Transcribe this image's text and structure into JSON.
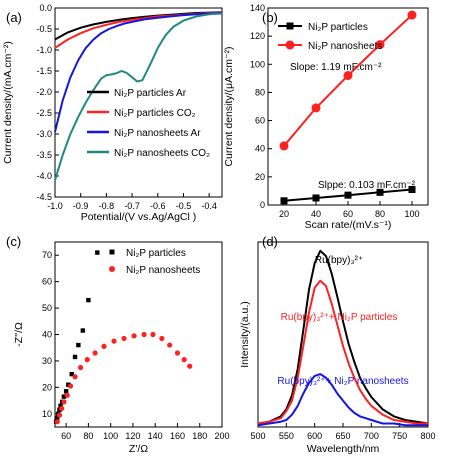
{
  "colors": {
    "black": "#000000",
    "red": "#ff2020",
    "blue": "#1515e0",
    "teal": "#1f8a80"
  },
  "chart_data": [
    {
      "panel_label": "(a)",
      "type": "line",
      "xlabel": "Potential/(V vs.Ag/AgCl )",
      "ylabel": "Current density/(mA.cm⁻²)",
      "xlim": [
        -1.0,
        -0.35
      ],
      "ylim": [
        -4.5,
        0
      ],
      "xticks": [
        "-1.0",
        "-0.9",
        "-0.8",
        "-0.7",
        "-0.6",
        "-0.5",
        "-0.4"
      ],
      "yticks": [
        "-4.5",
        "-4.0",
        "-3.5",
        "-3.0",
        "-2.5",
        "-2.0",
        "-1.5",
        "-1.0",
        "-0.5",
        "0.0"
      ],
      "legend_position": "lower-right",
      "series": [
        {
          "name": "Ni₂P particles Ar",
          "color": "#000000",
          "x": [
            -1.0,
            -0.95,
            -0.9,
            -0.85,
            -0.8,
            -0.75,
            -0.7,
            -0.65,
            -0.6,
            -0.55,
            -0.5,
            -0.45,
            -0.4,
            -0.35
          ],
          "y": [
            -0.75,
            -0.58,
            -0.47,
            -0.39,
            -0.33,
            -0.28,
            -0.24,
            -0.21,
            -0.18,
            -0.16,
            -0.14,
            -0.12,
            -0.11,
            -0.1
          ]
        },
        {
          "name": "Ni₂P particles CO₂",
          "color": "#ff2020",
          "x": [
            -1.0,
            -0.95,
            -0.9,
            -0.85,
            -0.8,
            -0.75,
            -0.7,
            -0.65,
            -0.6,
            -0.55,
            -0.5,
            -0.45,
            -0.4,
            -0.35
          ],
          "y": [
            -0.95,
            -0.75,
            -0.6,
            -0.48,
            -0.4,
            -0.33,
            -0.28,
            -0.24,
            -0.2,
            -0.18,
            -0.16,
            -0.14,
            -0.12,
            -0.11
          ]
        },
        {
          "name": "Ni₂P nanosheets Ar",
          "color": "#1515e0",
          "x": [
            -1.0,
            -0.97,
            -0.94,
            -0.91,
            -0.88,
            -0.85,
            -0.82,
            -0.79,
            -0.76,
            -0.73,
            -0.7,
            -0.65,
            -0.6,
            -0.55,
            -0.5,
            -0.45,
            -0.4,
            -0.35
          ],
          "y": [
            -2.95,
            -2.2,
            -1.65,
            -1.25,
            -0.95,
            -0.75,
            -0.6,
            -0.5,
            -0.43,
            -0.37,
            -0.33,
            -0.27,
            -0.23,
            -0.2,
            -0.17,
            -0.15,
            -0.13,
            -0.12
          ]
        },
        {
          "name": "Ni₂P nanosheets CO₂",
          "color": "#1f8a80",
          "x": [
            -1.0,
            -0.97,
            -0.94,
            -0.91,
            -0.88,
            -0.85,
            -0.82,
            -0.8,
            -0.78,
            -0.76,
            -0.74,
            -0.72,
            -0.7,
            -0.68,
            -0.66,
            -0.63,
            -0.6,
            -0.57,
            -0.54,
            -0.5,
            -0.45,
            -0.4,
            -0.35
          ],
          "y": [
            -4.1,
            -3.5,
            -3.0,
            -2.6,
            -2.25,
            -1.95,
            -1.68,
            -1.6,
            -1.58,
            -1.55,
            -1.5,
            -1.55,
            -1.65,
            -1.75,
            -1.72,
            -1.35,
            -0.95,
            -0.65,
            -0.45,
            -0.3,
            -0.2,
            -0.15,
            -0.13
          ]
        }
      ]
    },
    {
      "panel_label": "(b)",
      "type": "line",
      "xlabel": "Scan rate/(mV.s⁻¹)",
      "ylabel": "Current density/(μA.cm⁻²)",
      "xlim": [
        10,
        110
      ],
      "ylim": [
        0,
        140
      ],
      "xticks": [
        "20",
        "40",
        "60",
        "80",
        "100"
      ],
      "yticks": [
        "0",
        "20",
        "40",
        "60",
        "80",
        "100",
        "120",
        "140"
      ],
      "legend_position": "top-left",
      "annotations": [
        "Slope: 1.19 mF.cm⁻²",
        "Slppe: 0.103 mF.cm⁻²"
      ],
      "series": [
        {
          "name": "Ni₂P particles",
          "marker": "square",
          "color": "#000000",
          "x": [
            20,
            40,
            60,
            80,
            100
          ],
          "y": [
            3,
            5,
            7,
            9,
            11
          ]
        },
        {
          "name": "Ni₂P nanosheets",
          "marker": "circle",
          "color": "#ff2020",
          "x": [
            20,
            40,
            60,
            80,
            100
          ],
          "y": [
            42,
            69,
            92,
            114,
            135
          ]
        }
      ]
    },
    {
      "panel_label": "(c)",
      "type": "scatter",
      "xlabel": "Z'/Ω",
      "ylabel": "-Z''/Ω",
      "xlim": [
        50,
        200
      ],
      "ylim": [
        5,
        75
      ],
      "xticks": [
        "60",
        "80",
        "100",
        "120",
        "140",
        "160",
        "180",
        "200"
      ],
      "yticks": [
        "10",
        "20",
        "30",
        "40",
        "50",
        "60",
        "70"
      ],
      "legend_position": "top-right",
      "series": [
        {
          "name": "Ni₂P particles",
          "marker": "square",
          "color": "#000000",
          "x": [
            51,
            52,
            53,
            54,
            55,
            56.5,
            58,
            60,
            62,
            65,
            68,
            71,
            75,
            80,
            88
          ],
          "y": [
            7,
            8.5,
            10,
            11.5,
            13,
            14.5,
            16.5,
            18.5,
            21,
            25,
            31.5,
            36,
            41.5,
            53,
            71
          ]
        },
        {
          "name": "Ni₂P nanosheets",
          "marker": "circle",
          "color": "#ff2020",
          "x": [
            52,
            54,
            56,
            58,
            61,
            64,
            68,
            73,
            79,
            86,
            94,
            103,
            112,
            121,
            130,
            138,
            146,
            153,
            160,
            166,
            171
          ],
          "y": [
            7,
            9.5,
            12,
            14.5,
            17,
            20.5,
            24,
            27.5,
            30.5,
            33,
            35.5,
            37.5,
            38.5,
            39.5,
            40,
            40,
            38.5,
            36,
            33,
            30.5,
            28
          ]
        }
      ]
    },
    {
      "panel_label": "(d)",
      "type": "line",
      "xlabel": "Wavelength/nm",
      "ylabel": "Intensity/(a.u.)",
      "xlim": [
        500,
        800
      ],
      "ylim": [
        0,
        1.05
      ],
      "xticks": [
        "500",
        "550",
        "600",
        "650",
        "700",
        "750",
        "800"
      ],
      "yticks": [],
      "annotations": [
        "Ru(bpy)₃²⁺",
        "Ru(bpy)₃²⁺+ Ni₂P particles",
        "Ru(bpy)₃²⁺+ Ni₂P nanosheets"
      ],
      "series": [
        {
          "name": "Ru(bpy)₃²⁺",
          "color": "#000000",
          "x": [
            500,
            520,
            540,
            550,
            560,
            570,
            580,
            590,
            600,
            610,
            620,
            630,
            640,
            650,
            660,
            670,
            680,
            690,
            700,
            720,
            740,
            760,
            780,
            800
          ],
          "y": [
            0.02,
            0.03,
            0.06,
            0.1,
            0.18,
            0.33,
            0.55,
            0.78,
            0.93,
            1.0,
            0.97,
            0.87,
            0.74,
            0.6,
            0.47,
            0.37,
            0.28,
            0.22,
            0.17,
            0.1,
            0.06,
            0.04,
            0.03,
            0.02
          ]
        },
        {
          "name": "Ru(bpy)₃²⁺+ Ni₂P particles",
          "color": "#ff2020",
          "x": [
            500,
            520,
            540,
            550,
            560,
            570,
            580,
            590,
            600,
            610,
            620,
            630,
            640,
            650,
            660,
            670,
            680,
            690,
            700,
            720,
            740,
            760,
            780,
            800
          ],
          "y": [
            0.02,
            0.03,
            0.05,
            0.09,
            0.15,
            0.28,
            0.46,
            0.65,
            0.79,
            0.83,
            0.8,
            0.7,
            0.58,
            0.46,
            0.36,
            0.28,
            0.21,
            0.16,
            0.12,
            0.07,
            0.04,
            0.03,
            0.02,
            0.02
          ]
        },
        {
          "name": "Ru(bpy)₃²⁺+ Ni₂P nanosheets",
          "color": "#1515e0",
          "x": [
            500,
            520,
            540,
            550,
            560,
            570,
            580,
            590,
            600,
            610,
            620,
            630,
            640,
            650,
            660,
            670,
            680,
            690,
            700,
            720,
            740,
            760,
            780,
            800
          ],
          "y": [
            0.01,
            0.02,
            0.03,
            0.04,
            0.07,
            0.12,
            0.19,
            0.25,
            0.29,
            0.3,
            0.28,
            0.24,
            0.19,
            0.15,
            0.11,
            0.08,
            0.06,
            0.05,
            0.04,
            0.02,
            0.02,
            0.01,
            0.01,
            0.01
          ]
        }
      ]
    }
  ]
}
